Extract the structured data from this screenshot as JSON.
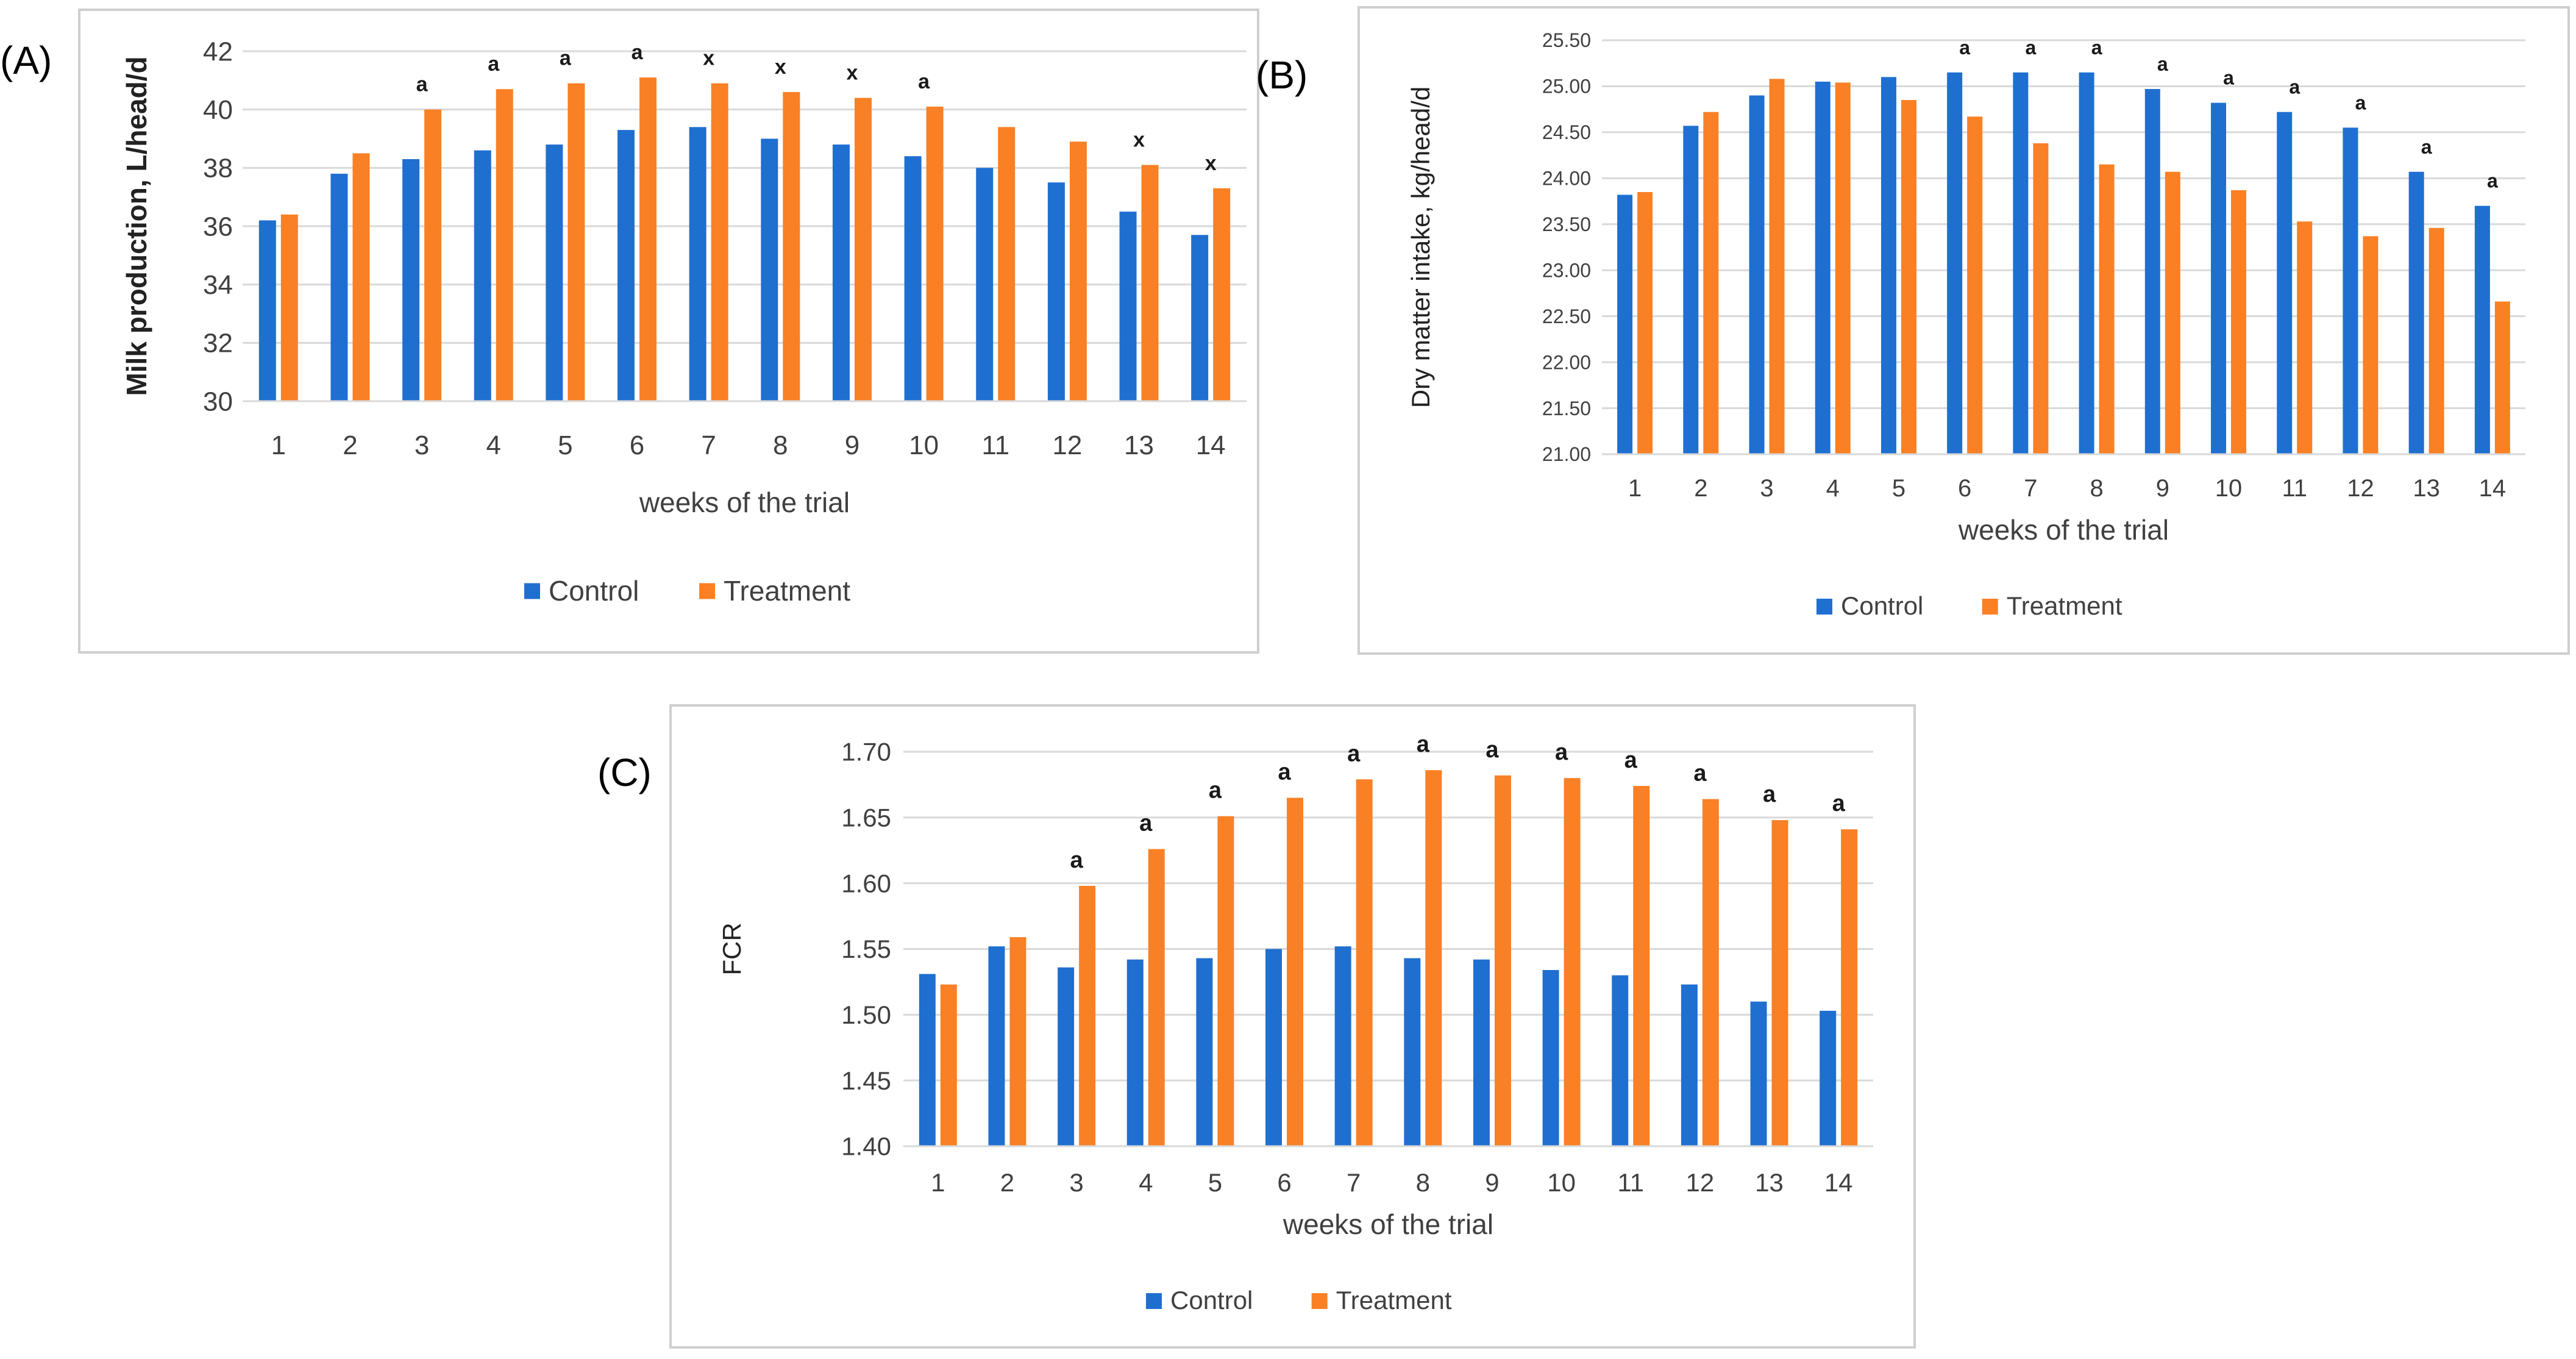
{
  "colors": {
    "control": "#1f6fd1",
    "treatment": "#f98025",
    "grid": "#d9d9d9",
    "panel_border": "#cfcfcf",
    "text": "#404040"
  },
  "chart_data": [
    {
      "panel": "(A)",
      "type": "bar",
      "title": "",
      "xlabel": "weeks of the trial",
      "ylabel": "Milk production, L/head/d",
      "ylim": [
        30,
        42
      ],
      "yticks": [
        "30",
        "32",
        "34",
        "36",
        "38",
        "40",
        "42"
      ],
      "categories": [
        "1",
        "2",
        "3",
        "4",
        "5",
        "6",
        "7",
        "8",
        "9",
        "10",
        "11",
        "12",
        "13",
        "14"
      ],
      "series": [
        {
          "name": "Control",
          "values": [
            36.2,
            37.8,
            38.3,
            38.6,
            38.8,
            39.3,
            39.4,
            39.0,
            38.8,
            38.4,
            38.0,
            37.5,
            36.5,
            35.7
          ]
        },
        {
          "name": "Treatment",
          "values": [
            36.4,
            38.5,
            40.0,
            40.7,
            40.9,
            41.1,
            40.9,
            40.6,
            40.4,
            40.1,
            39.4,
            38.9,
            38.1,
            37.3
          ]
        }
      ],
      "annotations": [
        "",
        "",
        "a",
        "a",
        "a",
        "a",
        "x",
        "x",
        "x",
        "a",
        "",
        "",
        "x",
        "x"
      ],
      "legend": "bottom"
    },
    {
      "panel": "(B)",
      "type": "bar",
      "title": "",
      "xlabel": "weeks of the trial",
      "ylabel": "Dry matter intake, kg/head/d",
      "ylim": [
        21,
        25.5
      ],
      "yticks": [
        "21.00",
        "21.50",
        "22.00",
        "22.50",
        "23.00",
        "23.50",
        "24.00",
        "24.50",
        "25.00",
        "25.50"
      ],
      "categories": [
        "1",
        "2",
        "3",
        "4",
        "5",
        "6",
        "7",
        "8",
        "9",
        "10",
        "11",
        "12",
        "13",
        "14"
      ],
      "series": [
        {
          "name": "Control",
          "values": [
            23.82,
            24.57,
            24.9,
            25.05,
            25.1,
            25.15,
            25.15,
            25.15,
            24.97,
            24.82,
            24.72,
            24.55,
            24.07,
            23.7
          ]
        },
        {
          "name": "Treatment",
          "values": [
            23.85,
            24.72,
            25.08,
            25.04,
            24.85,
            24.67,
            24.38,
            24.15,
            24.07,
            23.87,
            23.53,
            23.37,
            23.46,
            22.66
          ]
        }
      ],
      "annotations": [
        "",
        "",
        "",
        "",
        "",
        "a",
        "a",
        "a",
        "a",
        "a",
        "a",
        "a",
        "a",
        "a"
      ],
      "legend": "bottom"
    },
    {
      "panel": "(C)",
      "type": "bar",
      "title": "",
      "xlabel": "weeks of the trial",
      "ylabel": "FCR",
      "ylim": [
        1.4,
        1.7
      ],
      "yticks": [
        "1.40",
        "1.45",
        "1.50",
        "1.55",
        "1.60",
        "1.65",
        "1.70"
      ],
      "categories": [
        "1",
        "2",
        "3",
        "4",
        "5",
        "6",
        "7",
        "8",
        "9",
        "10",
        "11",
        "12",
        "13",
        "14"
      ],
      "series": [
        {
          "name": "Control",
          "values": [
            1.531,
            1.552,
            1.536,
            1.542,
            1.543,
            1.55,
            1.552,
            1.543,
            1.542,
            1.534,
            1.53,
            1.523,
            1.51,
            1.503
          ]
        },
        {
          "name": "Treatment",
          "values": [
            1.523,
            1.559,
            1.598,
            1.626,
            1.651,
            1.665,
            1.679,
            1.686,
            1.682,
            1.68,
            1.674,
            1.664,
            1.648,
            1.641
          ]
        }
      ],
      "annotations": [
        "",
        "",
        "a",
        "a",
        "a",
        "a",
        "a",
        "a",
        "a",
        "a",
        "a",
        "a",
        "a",
        "a"
      ],
      "legend": "bottom"
    }
  ]
}
